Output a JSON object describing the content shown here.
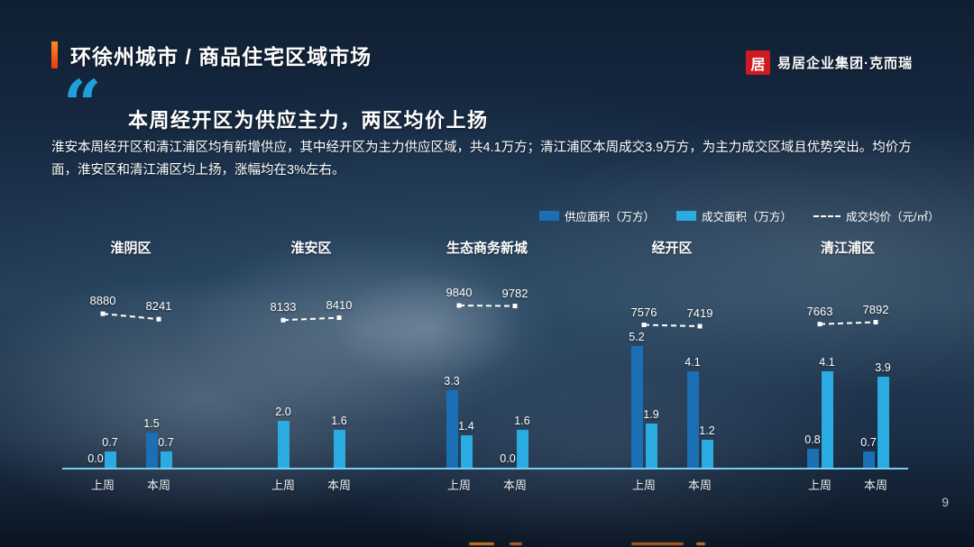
{
  "page": {
    "number": "9"
  },
  "header": {
    "title": "环徐州城市 / 商品住宅区域市场",
    "logo_glyph": "居",
    "logo_text": "易居企业集团·克而瑞"
  },
  "summary": {
    "quote_glyph": "“",
    "heading": "本周经开区为供应主力，两区均价上扬",
    "body": "淮安本周经开区和清江浦区均有新增供应，其中经开区为主力供应区域，共4.1万方；清江浦区本周成交3.9万方，为主力成交区域且优势突出。均价方面，淮安区和清江浦区均上扬，涨幅均在3%左右。"
  },
  "legend": {
    "supply": "供应面积（万方）",
    "deal": "成交面积（万方）",
    "price": "成交均价（元/㎡）"
  },
  "chart_data": {
    "type": "bar",
    "note": "grouped bars (supply, deal) per week with secondary dashed price line",
    "colors": {
      "supply": "#1b6fb5",
      "deal": "#2aabe2",
      "price_line": "#ffffff",
      "axis": "#79cdf0"
    },
    "week_labels": [
      "上周",
      "本周"
    ],
    "groups": [
      {
        "region": "淮阴区",
        "weeks": [
          {
            "label": "上周",
            "supply": 0.0,
            "deal": 0.7,
            "price": 8880
          },
          {
            "label": "本周",
            "supply": 1.5,
            "deal": 0.7,
            "price": 8241
          }
        ]
      },
      {
        "region": "淮安区",
        "weeks": [
          {
            "label": "上周",
            "supply": null,
            "deal": 2.0,
            "price": 8133
          },
          {
            "label": "本周",
            "supply": null,
            "deal": 1.6,
            "price": 8410
          }
        ]
      },
      {
        "region": "生态商务新城",
        "weeks": [
          {
            "label": "上周",
            "supply": 3.3,
            "deal": 1.4,
            "price": 9840
          },
          {
            "label": "本周",
            "supply": 0.0,
            "deal": 1.6,
            "price": 9782
          }
        ]
      },
      {
        "region": "经开区",
        "weeks": [
          {
            "label": "上周",
            "supply": 5.2,
            "deal": 1.9,
            "price": 7576
          },
          {
            "label": "本周",
            "supply": 4.1,
            "deal": 1.2,
            "price": 7419
          }
        ]
      },
      {
        "region": "清江浦区",
        "weeks": [
          {
            "label": "上周",
            "supply": 0.8,
            "deal": 4.1,
            "price": 7663
          },
          {
            "label": "本周",
            "supply": 0.7,
            "deal": 3.9,
            "price": 7892
          }
        ]
      }
    ]
  }
}
